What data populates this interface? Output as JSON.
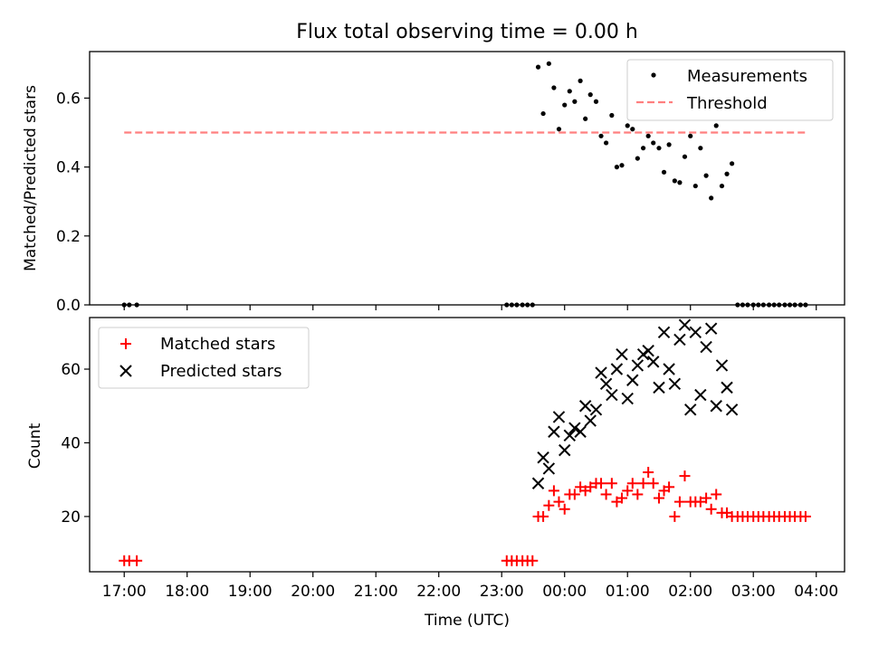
{
  "title": "Flux total observing time = 0.00 h",
  "colors": {
    "measurement": "#000000",
    "threshold": "#ff7f7f",
    "matched": "#ff0000",
    "predicted": "#000000"
  },
  "chart_data": [
    {
      "id": "top",
      "type": "scatter",
      "ylabel": "Matched/Predicted stars",
      "xlabel": "",
      "xlim_hours": [
        16.45,
        28.45
      ],
      "ylim": [
        0,
        0.735
      ],
      "yticks": [
        0.0,
        0.2,
        0.4,
        0.6
      ],
      "ytick_labels": [
        "0.0",
        "0.2",
        "0.4",
        "0.6"
      ],
      "legend": {
        "position": "top-right",
        "measurements": "Measurements",
        "threshold": "Threshold"
      },
      "threshold": {
        "value": 0.5,
        "x_start_hours": 17.0,
        "x_end_hours": 27.85
      },
      "measurements": {
        "x_hours": [
          17.0,
          17.08,
          17.2,
          23.08,
          23.16,
          23.24,
          23.33,
          23.41,
          23.49,
          23.58,
          23.66,
          23.75,
          23.83,
          23.91,
          24.0,
          24.08,
          24.16,
          24.25,
          24.33,
          24.41,
          24.5,
          24.58,
          24.66,
          24.75,
          24.83,
          24.91,
          25.0,
          25.08,
          25.16,
          25.25,
          25.33,
          25.41,
          25.5,
          25.58,
          25.66,
          25.75,
          25.83,
          25.91,
          26.0,
          26.08,
          26.16,
          26.25,
          26.33,
          26.41,
          26.5,
          26.58,
          26.66,
          26.75,
          26.83,
          26.91,
          27.0,
          27.08,
          27.16,
          27.25,
          27.33,
          27.41,
          27.5,
          27.58,
          27.66,
          27.75,
          27.83
        ],
        "y": [
          0,
          0,
          0,
          0,
          0,
          0,
          0,
          0,
          0,
          0.69,
          0.555,
          0.7,
          0.63,
          0.51,
          0.58,
          0.62,
          0.59,
          0.65,
          0.54,
          0.61,
          0.59,
          0.49,
          0.47,
          0.55,
          0.4,
          0.405,
          0.52,
          0.51,
          0.425,
          0.455,
          0.49,
          0.47,
          0.455,
          0.385,
          0.465,
          0.36,
          0.355,
          0.43,
          0.49,
          0.345,
          0.455,
          0.375,
          0.31,
          0.52,
          0.345,
          0.38,
          0.41,
          0,
          0,
          0,
          0,
          0,
          0,
          0,
          0,
          0,
          0,
          0,
          0,
          0,
          0
        ]
      }
    },
    {
      "id": "bottom",
      "type": "scatter",
      "xlabel": "Time (UTC)",
      "ylabel": "Count",
      "xlim_hours": [
        16.45,
        28.45
      ],
      "ylim": [
        5,
        74
      ],
      "yticks": [
        20,
        40,
        60
      ],
      "ytick_labels": [
        "20",
        "40",
        "60"
      ],
      "xticks_hours": [
        17,
        18,
        19,
        20,
        21,
        22,
        23,
        24,
        25,
        26,
        27,
        28
      ],
      "xtick_labels": [
        "17:00",
        "18:00",
        "19:00",
        "20:00",
        "21:00",
        "22:00",
        "23:00",
        "00:00",
        "01:00",
        "02:00",
        "03:00",
        "04:00"
      ],
      "legend": {
        "position": "top-left",
        "matched": "Matched stars",
        "predicted": "Predicted stars"
      },
      "series": [
        {
          "name": "Matched stars",
          "marker": "plus",
          "x_hours": [
            17.0,
            17.08,
            17.2,
            23.08,
            23.16,
            23.24,
            23.33,
            23.41,
            23.49,
            23.58,
            23.66,
            23.75,
            23.83,
            23.91,
            24.0,
            24.08,
            24.16,
            24.25,
            24.33,
            24.41,
            24.5,
            24.58,
            24.66,
            24.75,
            24.83,
            24.91,
            25.0,
            25.08,
            25.16,
            25.25,
            25.33,
            25.41,
            25.5,
            25.58,
            25.66,
            25.75,
            25.83,
            25.91,
            26.0,
            26.08,
            26.16,
            26.25,
            26.33,
            26.41,
            26.5,
            26.58,
            26.66,
            26.75,
            26.83,
            26.91,
            27.0,
            27.08,
            27.16,
            27.25,
            27.33,
            27.41,
            27.5,
            27.58,
            27.66,
            27.75,
            27.83
          ],
          "values": [
            8,
            8,
            8,
            8,
            8,
            8,
            8,
            8,
            8,
            20,
            20,
            23,
            27,
            24,
            22,
            26,
            26,
            28,
            27,
            28,
            29,
            29,
            26,
            29,
            24,
            25,
            27,
            29,
            26,
            29,
            32,
            29,
            25,
            27,
            28,
            20,
            24,
            31,
            24,
            24,
            24,
            25,
            22,
            26,
            21,
            21,
            20,
            20,
            20,
            20,
            20,
            20,
            20,
            20,
            20,
            20,
            20,
            20,
            20,
            20,
            20
          ]
        },
        {
          "name": "Predicted stars",
          "marker": "x",
          "x_hours": [
            23.58,
            23.66,
            23.75,
            23.83,
            23.91,
            24.0,
            24.08,
            24.16,
            24.25,
            24.33,
            24.41,
            24.5,
            24.58,
            24.66,
            24.75,
            24.83,
            24.91,
            25.0,
            25.08,
            25.16,
            25.25,
            25.33,
            25.41,
            25.5,
            25.58,
            25.66,
            25.75,
            25.83,
            25.91,
            26.0,
            26.08,
            26.16,
            26.25,
            26.33,
            26.41,
            26.5,
            26.58,
            26.66
          ],
          "values": [
            29,
            36,
            33,
            43,
            47,
            38,
            42,
            44,
            43,
            50,
            46,
            49,
            59,
            56,
            53,
            60,
            64,
            52,
            57,
            61,
            64,
            65,
            62,
            55,
            70,
            60,
            56,
            68,
            72,
            49,
            70,
            53,
            66,
            71,
            50,
            61,
            55,
            49
          ]
        }
      ]
    }
  ]
}
